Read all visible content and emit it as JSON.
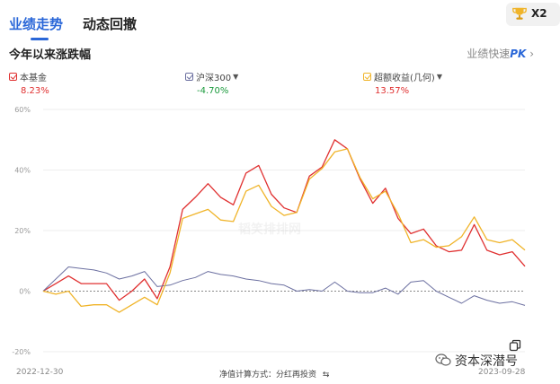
{
  "header": {
    "tabs": [
      {
        "label": "业绩走势",
        "active": true
      },
      {
        "label": "动态回撤",
        "active": false
      }
    ],
    "badge_text": "X2"
  },
  "section": {
    "subtitle": "今年以来涨跌幅",
    "pk_prefix": "业绩快速",
    "pk_suffix": "PK",
    "pk_arrow": "›"
  },
  "legend": [
    {
      "name": "本基金",
      "value": "8.23%",
      "color": "#e03030",
      "value_color": "#e03030",
      "dropdown": false
    },
    {
      "name": "沪深300",
      "value": "-4.70%",
      "color": "#6b6fa0",
      "value_color": "#1a9a3c",
      "dropdown": true
    },
    {
      "name": "超额收益(几何)",
      "value": "13.57%",
      "color": "#f0b429",
      "value_color": "#e03030",
      "dropdown": true
    }
  ],
  "footer": {
    "start_date": "2022-12-30",
    "end_date": "2023-09-28",
    "calc_method": "净值计算方式：分红再投资",
    "calc_icon": "swap-icon"
  },
  "watermark": {
    "text": "资本深潜号",
    "icon": "wechat-icon",
    "chart_watermark": "韬笑排排网"
  },
  "chart_data": {
    "type": "line",
    "yticks": [
      "60%",
      "40%",
      "20%",
      "0%",
      "-20%"
    ],
    "ytick_values": [
      60,
      40,
      20,
      0,
      -20
    ],
    "ylim": [
      -20,
      60
    ],
    "baseline": 0,
    "x_start": "2022-12-30",
    "x_end": "2023-09-28",
    "series": [
      {
        "name": "本基金",
        "color": "#e03030",
        "values": [
          0,
          2.5,
          5,
          2.5,
          2.5,
          2.5,
          -3,
          0,
          4,
          -2.5,
          8,
          27,
          31,
          35.5,
          31,
          28.5,
          39,
          41.5,
          32,
          27.5,
          26,
          38,
          41,
          50,
          47,
          37,
          29,
          34,
          24,
          19,
          20.5,
          15,
          13,
          13.5,
          22,
          13.5,
          12,
          13,
          8.2
        ]
      },
      {
        "name": "沪深300",
        "color": "#6b6fa0",
        "values": [
          0,
          4,
          8,
          7.5,
          7,
          6,
          4,
          5,
          6.5,
          1.5,
          2,
          3.5,
          4.5,
          6.5,
          5.5,
          5,
          4,
          3.5,
          2.5,
          2,
          0,
          0.5,
          0,
          3,
          0,
          -0.5,
          -0.5,
          1,
          -1,
          3,
          3.5,
          0,
          -2,
          -4,
          -1.5,
          -3,
          -4,
          -3.5,
          -4.7
        ]
      },
      {
        "name": "超额收益(几何)",
        "color": "#f0b429",
        "values": [
          0,
          -1,
          0,
          -5,
          -4.5,
          -4.5,
          -7,
          -4.5,
          -2,
          -4.5,
          6,
          24,
          25.5,
          27,
          23.5,
          23,
          33,
          35,
          28,
          25,
          26,
          37,
          40.5,
          46,
          47,
          37.5,
          30.5,
          33,
          25.5,
          16,
          17,
          14.5,
          15,
          18,
          24.5,
          17,
          16,
          17,
          13.57
        ]
      }
    ]
  }
}
